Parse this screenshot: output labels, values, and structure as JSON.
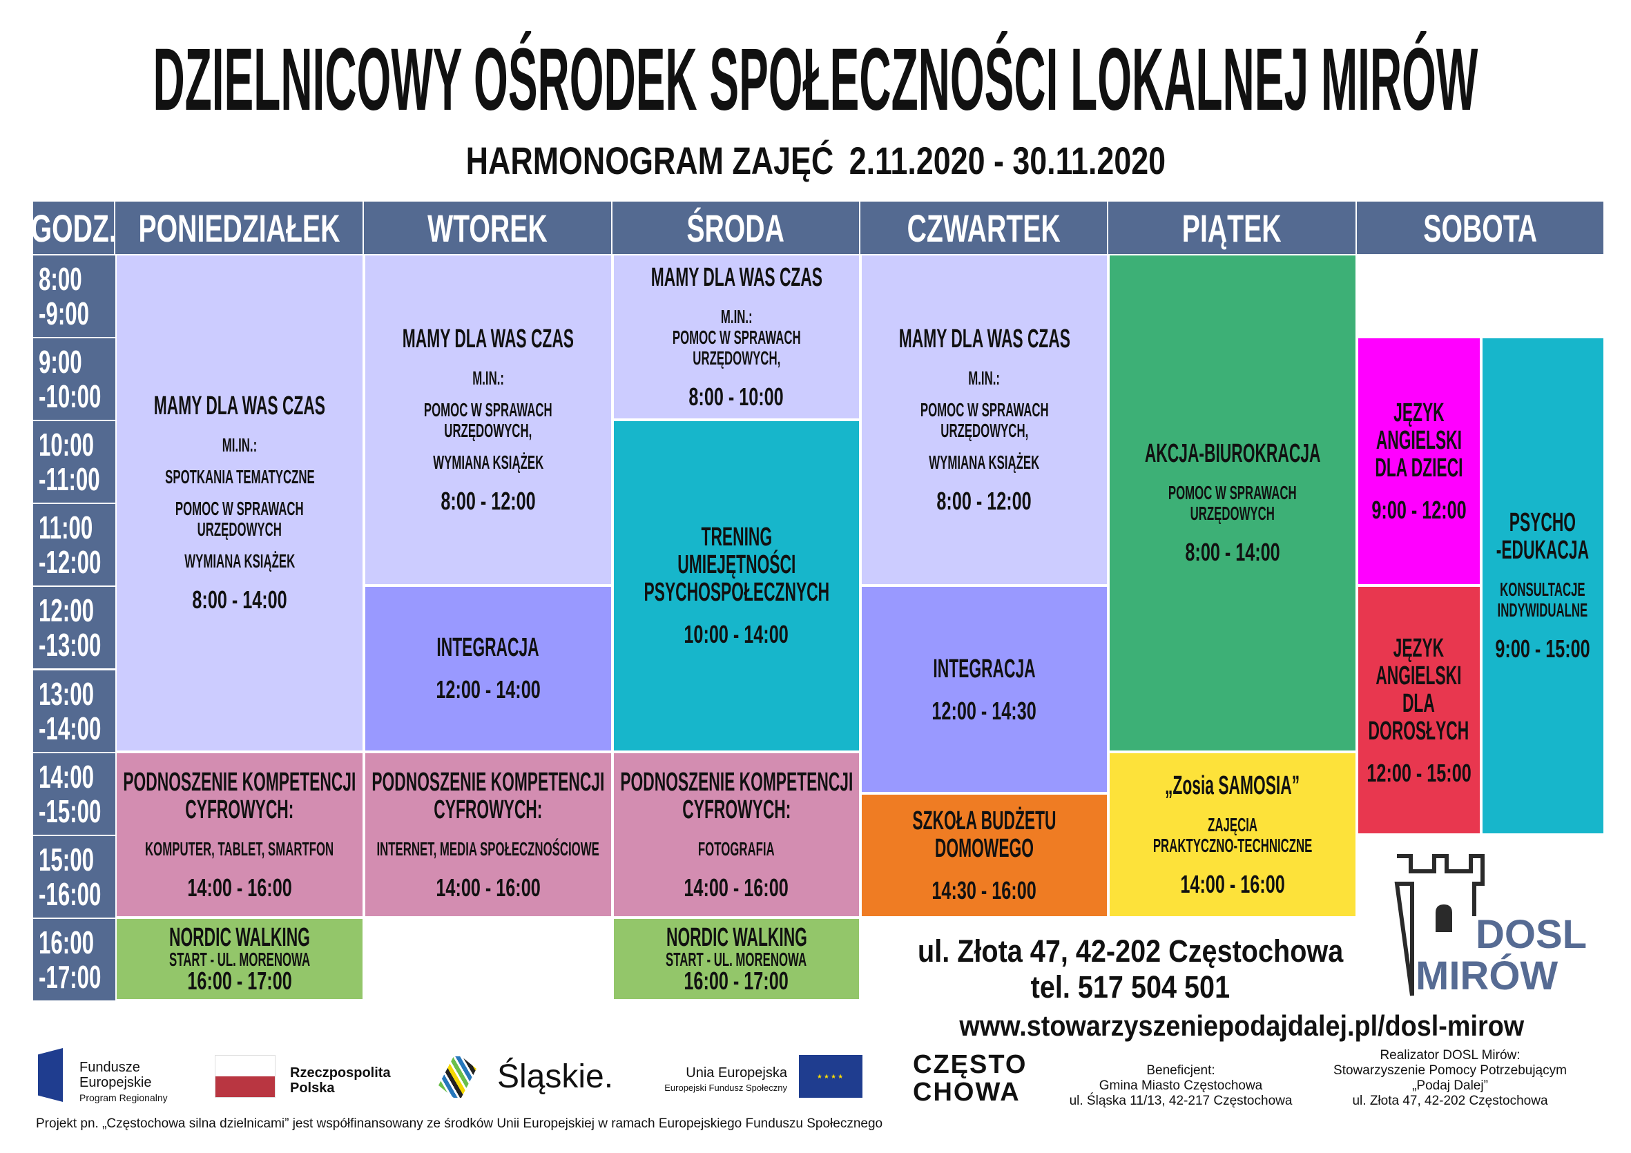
{
  "title": "DZIELNICOWY OŚRODEK SPOŁECZNOŚCI LOKALNEJ MIRÓW",
  "subtitle": {
    "label": "HARMONOGRAM ZAJĘĆ",
    "range": "2.11.2020 - 30.11.2020"
  },
  "hour_header": "GODZ.",
  "hours": [
    [
      "8:00",
      "-9:00"
    ],
    [
      "9:00",
      "-10:00"
    ],
    [
      "10:00",
      "-11:00"
    ],
    [
      "11:00",
      "-12:00"
    ],
    [
      "12:00",
      "-13:00"
    ],
    [
      "13:00",
      "-14:00"
    ],
    [
      "14:00",
      "-15:00"
    ],
    [
      "15:00",
      "-16:00"
    ],
    [
      "16:00",
      "-17:00"
    ]
  ],
  "days": [
    {
      "name": "PONIEDZIAŁEK",
      "blocks": [
        {
          "title": "MAMY DLA WAS CZAS",
          "lines": [
            "MI.IN.:",
            "SPOTKANIA TEMATYCZNE",
            "POMOC W SPRAWACH\nURZĘDOWYCH",
            "WYMIANA KSIĄŻEK"
          ],
          "time": "8:00 - 14:00",
          "color": "#ccccff"
        },
        {
          "title": "PODNOSZENIE KOMPETENCJI\nCYFROWYCH:",
          "lines": [
            "KOMPUTER, TABLET, SMARTFON"
          ],
          "time": "14:00 - 16:00",
          "color": "#d38db1"
        },
        {
          "title": "NORDIC WALKING",
          "lines": [
            "START - UL. MORENOWA"
          ],
          "time": "16:00 - 17:00",
          "color": "#93c66a"
        }
      ]
    },
    {
      "name": "WTOREK",
      "blocks": [
        {
          "title": "MAMY DLA WAS CZAS",
          "lines": [
            "M.IN.:",
            "POMOC W SPRAWACH\nURZĘDOWYCH,",
            "WYMIANA KSIĄŻEK"
          ],
          "time": "8:00 - 12:00",
          "color": "#ccccff"
        },
        {
          "title": "INTEGRACJA",
          "lines": [],
          "time": "12:00 - 14:00",
          "color": "#9999ff"
        },
        {
          "title": "PODNOSZENIE KOMPETENCJI\nCYFROWYCH:",
          "lines": [
            "INTERNET, MEDIA SPOŁECZNOŚCIOWE"
          ],
          "time": "14:00 - 16:00",
          "color": "#d38db1"
        }
      ]
    },
    {
      "name": "ŚRODA",
      "blocks": [
        {
          "title": "MAMY DLA WAS CZAS",
          "lines": [
            "M.IN.:\nPOMOC W SPRAWACH\nURZĘDOWYCH,"
          ],
          "time": "8:00 - 10:00",
          "color": "#ccccff"
        },
        {
          "title": "TRENING\nUMIEJĘTNOŚCI\nPSYCHOSPOŁECZNYCH",
          "lines": [],
          "time": "10:00 - 14:00",
          "color": "#17b6cb"
        },
        {
          "title": "PODNOSZENIE KOMPETENCJI\nCYFROWYCH:",
          "lines": [
            "FOTOGRAFIA"
          ],
          "time": "14:00 - 16:00",
          "color": "#d38db1"
        },
        {
          "title": "NORDIC WALKING",
          "lines": [
            "START - UL. MORENOWA"
          ],
          "time": "16:00 - 17:00",
          "color": "#93c66a"
        }
      ]
    },
    {
      "name": "CZWARTEK",
      "blocks": [
        {
          "title": "MAMY DLA WAS CZAS",
          "lines": [
            "M.IN.:",
            "POMOC W SPRAWACH\nURZĘDOWYCH,",
            "WYMIANA KSIĄŻEK"
          ],
          "time": "8:00 - 12:00",
          "color": "#ccccff"
        },
        {
          "title": "INTEGRACJA",
          "lines": [],
          "time": "12:00 - 14:30",
          "color": "#9999ff"
        },
        {
          "title": "SZKOŁA BUDŻETU\nDOMOWEGO",
          "lines": [],
          "time": "14:30 - 16:00",
          "color": "#ef7c23"
        }
      ]
    },
    {
      "name": "PIĄTEK",
      "blocks": [
        {
          "title": "AKCJA-BIUROKRACJA",
          "lines": [
            "POMOC W SPRAWACH\nURZĘDOWYCH"
          ],
          "time": "8:00 - 14:00",
          "color": "#3db076"
        },
        {
          "title": "„Zosia SAMOSIA”",
          "lines": [
            "ZAJĘCIA\nPRAKTYCZNO-TECHNICZNE"
          ],
          "time": "14:00 - 16:00",
          "color": "#fde23a"
        }
      ]
    },
    {
      "name": "SOBOTA",
      "lanes": [
        [
          {
            "title": "JĘZYK\nANGIELSKI\nDLA DZIECI",
            "lines": [],
            "time": "9:00 - 12:00",
            "color": "#ff00ff"
          },
          {
            "title": "JĘZYK\nANGIELSKI\nDLA\nDOROSŁYCH",
            "lines": [],
            "time": "12:00 - 15:00",
            "color": "#e8374f"
          }
        ],
        [
          {
            "title": "PSYCHO\n-EDUKACJA",
            "lines": [
              "KONSULTACJE\nINDYWIDUALNE"
            ],
            "time": "9:00 - 15:00",
            "color": "#17b6cb"
          }
        ]
      ]
    }
  ],
  "contact": {
    "address": "ul. Złota 47, 42-202 Częstochowa",
    "phone": "tel. 517 504 501",
    "website": "www.stowarzyszeniepodajdalej.pl/dosl-mirow"
  },
  "logo": {
    "line1": "DOSL",
    "line2": "MIRÓW"
  },
  "footer": {
    "fe": {
      "l1": "Fundusze",
      "l2": "Europejskie",
      "l3": "Program Regionalny"
    },
    "rp": {
      "l1": "Rzeczpospolita",
      "l2": "Polska"
    },
    "slaskie": "Śląskie.",
    "ue": {
      "l1": "Unia Europejska",
      "l2": "Europejski Fundusz Społeczny"
    },
    "czesto": {
      "l1": "CZĘSTO",
      "l2": "CHOWA"
    },
    "beneficjent": {
      "l1": "Beneficjent:",
      "l2": "Gmina Miasto Częstochowa",
      "l3": "ul. Śląska 11/13, 42-217 Częstochowa"
    },
    "realizator": {
      "l1": "Realizator DOSL Mirów:",
      "l2": "Stowarzyszenie Pomocy Potrzebującym",
      "l3": "„Podaj Dalej”",
      "l4": "ul. Złota 47, 42-202 Częstochowa"
    },
    "project": "Projekt pn. „Częstochowa silna dzielnicami” jest współfinansowany ze środków Unii Europejskiej w ramach Europejskiego Funduszu Społecznego"
  },
  "colors": {
    "header": "#546a91",
    "logo_text": "#566b93"
  }
}
